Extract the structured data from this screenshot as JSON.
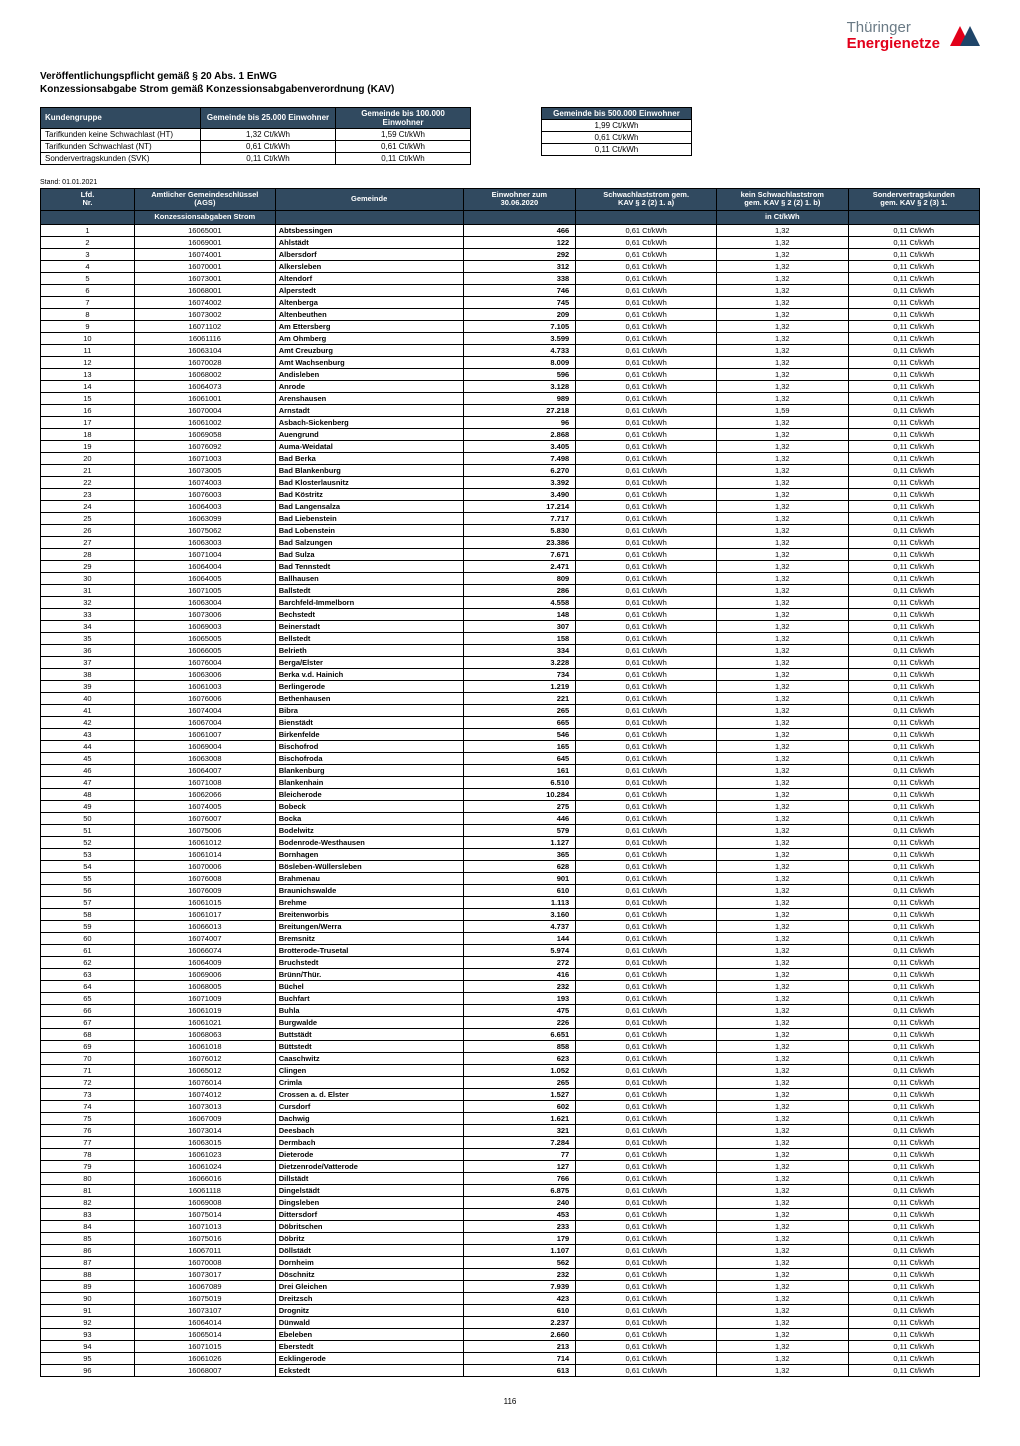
{
  "brand_accent": "#e2001a",
  "brand_text_top": "Thüringer",
  "brand_text_bottom": "Energienetze",
  "heading_line1": "Veröffentlichungspflicht gemäß § 20 Abs. 1  EnWG",
  "heading_line2": "Konzessionsabgabe Strom gemäß Konzessionsabgabenverordnung (KAV)",
  "stand": "Stand: 01.01.2021",
  "page_number": "116",
  "topLeft": {
    "headers": [
      "Kundengruppe",
      "Gemeinde bis 25.000 Einwohner",
      "Gemeinde bis 100.000 Einwohner"
    ],
    "rows": [
      [
        "Tarifkunden keine Schwachlast (HT)",
        "1,32 Ct/kWh",
        "1,59 Ct/kWh"
      ],
      [
        "Tarifkunden Schwachlast (NT)",
        "0,61 Ct/kWh",
        "0,61 Ct/kWh"
      ],
      [
        "Sondervertragskunden (SVK)",
        "0,11 Ct/kWh",
        "0,11 Ct/kWh"
      ]
    ]
  },
  "topRight": {
    "header": "Gemeinde bis 500.000 Einwohner",
    "rows": [
      "1,99 Ct/kWh",
      "0,61 Ct/kWh",
      "0,11 Ct/kWh"
    ]
  },
  "main": {
    "headers": [
      "Lfd.\nNr.",
      "Amtlicher Gemeindeschlüssel\n(AGS)",
      "Gemeinde",
      "Einwohner zum\n30.06.2020",
      "Schwachlaststrom gem.\nKAV § 2 (2) 1. a)",
      "kein Schwachlaststrom\ngem. KAV § 2 (2) 1. b)",
      "Sondervertragskunden\ngem. KAV § 2 (3) 1."
    ],
    "subheaders": [
      "",
      "Konzessionsabgaben Strom",
      "",
      "",
      "",
      "in Ct/kWh",
      ""
    ]
  },
  "rows": [
    {
      "n": "1",
      "ags": "16065001",
      "gem": "Abtsbessingen",
      "ein": "466",
      "sch": "0,61 Ct/kWh",
      "kein": "1,32",
      "svk": "0,11 Ct/kWh"
    },
    {
      "n": "2",
      "ags": "16069001",
      "gem": "Ahlstädt",
      "ein": "122",
      "sch": "0,61 Ct/kWh",
      "kein": "1,32",
      "svk": "0,11 Ct/kWh"
    },
    {
      "n": "3",
      "ags": "16074001",
      "gem": "Albersdorf",
      "ein": "292",
      "sch": "0,61 Ct/kWh",
      "kein": "1,32",
      "svk": "0,11 Ct/kWh"
    },
    {
      "n": "4",
      "ags": "16070001",
      "gem": "Alkersleben",
      "ein": "312",
      "sch": "0,61 Ct/kWh",
      "kein": "1,32",
      "svk": "0,11 Ct/kWh"
    },
    {
      "n": "5",
      "ags": "16073001",
      "gem": "Altendorf",
      "ein": "338",
      "sch": "0,61 Ct/kWh",
      "kein": "1,32",
      "svk": "0,11 Ct/kWh"
    },
    {
      "n": "6",
      "ags": "16068001",
      "gem": "Alperstedt",
      "ein": "746",
      "sch": "0,61 Ct/kWh",
      "kein": "1,32",
      "svk": "0,11 Ct/kWh"
    },
    {
      "n": "7",
      "ags": "16074002",
      "gem": "Altenberga",
      "ein": "745",
      "sch": "0,61 Ct/kWh",
      "kein": "1,32",
      "svk": "0,11 Ct/kWh"
    },
    {
      "n": "8",
      "ags": "16073002",
      "gem": "Altenbeuthen",
      "ein": "209",
      "sch": "0,61 Ct/kWh",
      "kein": "1,32",
      "svk": "0,11 Ct/kWh"
    },
    {
      "n": "9",
      "ags": "16071102",
      "gem": "Am Ettersberg",
      "ein": "7.105",
      "sch": "0,61 Ct/kWh",
      "kein": "1,32",
      "svk": "0,11 Ct/kWh"
    },
    {
      "n": "10",
      "ags": "16061116",
      "gem": "Am Ohmberg",
      "ein": "3.599",
      "sch": "0,61 Ct/kWh",
      "kein": "1,32",
      "svk": "0,11 Ct/kWh"
    },
    {
      "n": "11",
      "ags": "16063104",
      "gem": "Amt Creuzburg",
      "ein": "4.733",
      "sch": "0,61 Ct/kWh",
      "kein": "1,32",
      "svk": "0,11 Ct/kWh"
    },
    {
      "n": "12",
      "ags": "16070028",
      "gem": "Amt Wachsenburg",
      "ein": "8.009",
      "sch": "0,61 Ct/kWh",
      "kein": "1,32",
      "svk": "0,11 Ct/kWh"
    },
    {
      "n": "13",
      "ags": "16068002",
      "gem": "Andisleben",
      "ein": "596",
      "sch": "0,61 Ct/kWh",
      "kein": "1,32",
      "svk": "0,11 Ct/kWh"
    },
    {
      "n": "14",
      "ags": "16064073",
      "gem": "Anrode",
      "ein": "3.128",
      "sch": "0,61 Ct/kWh",
      "kein": "1,32",
      "svk": "0,11 Ct/kWh"
    },
    {
      "n": "15",
      "ags": "16061001",
      "gem": "Arenshausen",
      "ein": "989",
      "sch": "0,61 Ct/kWh",
      "kein": "1,32",
      "svk": "0,11 Ct/kWh"
    },
    {
      "n": "16",
      "ags": "16070004",
      "gem": "Arnstadt",
      "ein": "27.218",
      "sch": "0,61 Ct/kWh",
      "kein": "1,59",
      "svk": "0,11 Ct/kWh"
    },
    {
      "n": "17",
      "ags": "16061002",
      "gem": "Asbach-Sickenberg",
      "ein": "96",
      "sch": "0,61 Ct/kWh",
      "kein": "1,32",
      "svk": "0,11 Ct/kWh"
    },
    {
      "n": "18",
      "ags": "16069058",
      "gem": "Auengrund",
      "ein": "2.868",
      "sch": "0,61 Ct/kWh",
      "kein": "1,32",
      "svk": "0,11 Ct/kWh"
    },
    {
      "n": "19",
      "ags": "16076092",
      "gem": "Auma-Weidatal",
      "ein": "3.405",
      "sch": "0,61 Ct/kWh",
      "kein": "1,32",
      "svk": "0,11 Ct/kWh"
    },
    {
      "n": "20",
      "ags": "16071003",
      "gem": "Bad Berka",
      "ein": "7.498",
      "sch": "0,61 Ct/kWh",
      "kein": "1,32",
      "svk": "0,11 Ct/kWh"
    },
    {
      "n": "21",
      "ags": "16073005",
      "gem": "Bad Blankenburg",
      "ein": "6.270",
      "sch": "0,61 Ct/kWh",
      "kein": "1,32",
      "svk": "0,11 Ct/kWh"
    },
    {
      "n": "22",
      "ags": "16074003",
      "gem": "Bad Klosterlausnitz",
      "ein": "3.392",
      "sch": "0,61 Ct/kWh",
      "kein": "1,32",
      "svk": "0,11 Ct/kWh"
    },
    {
      "n": "23",
      "ags": "16076003",
      "gem": "Bad Köstritz",
      "ein": "3.490",
      "sch": "0,61 Ct/kWh",
      "kein": "1,32",
      "svk": "0,11 Ct/kWh"
    },
    {
      "n": "24",
      "ags": "16064003",
      "gem": "Bad Langensalza",
      "ein": "17.214",
      "sch": "0,61 Ct/kWh",
      "kein": "1,32",
      "svk": "0,11 Ct/kWh"
    },
    {
      "n": "25",
      "ags": "16063099",
      "gem": "Bad Liebenstein",
      "ein": "7.717",
      "sch": "0,61 Ct/kWh",
      "kein": "1,32",
      "svk": "0,11 Ct/kWh"
    },
    {
      "n": "26",
      "ags": "16075062",
      "gem": "Bad Lobenstein",
      "ein": "5.830",
      "sch": "0,61 Ct/kWh",
      "kein": "1,32",
      "svk": "0,11 Ct/kWh"
    },
    {
      "n": "27",
      "ags": "16063003",
      "gem": "Bad Salzungen",
      "ein": "23.386",
      "sch": "0,61 Ct/kWh",
      "kein": "1,32",
      "svk": "0,11 Ct/kWh"
    },
    {
      "n": "28",
      "ags": "16071004",
      "gem": "Bad Sulza",
      "ein": "7.671",
      "sch": "0,61 Ct/kWh",
      "kein": "1,32",
      "svk": "0,11 Ct/kWh"
    },
    {
      "n": "29",
      "ags": "16064004",
      "gem": "Bad Tennstedt",
      "ein": "2.471",
      "sch": "0,61 Ct/kWh",
      "kein": "1,32",
      "svk": "0,11 Ct/kWh"
    },
    {
      "n": "30",
      "ags": "16064005",
      "gem": "Ballhausen",
      "ein": "809",
      "sch": "0,61 Ct/kWh",
      "kein": "1,32",
      "svk": "0,11 Ct/kWh"
    },
    {
      "n": "31",
      "ags": "16071005",
      "gem": "Ballstedt",
      "ein": "286",
      "sch": "0,61 Ct/kWh",
      "kein": "1,32",
      "svk": "0,11 Ct/kWh"
    },
    {
      "n": "32",
      "ags": "16063004",
      "gem": "Barchfeld-Immelborn",
      "ein": "4.558",
      "sch": "0,61 Ct/kWh",
      "kein": "1,32",
      "svk": "0,11 Ct/kWh"
    },
    {
      "n": "33",
      "ags": "16073006",
      "gem": "Bechstedt",
      "ein": "148",
      "sch": "0,61 Ct/kWh",
      "kein": "1,32",
      "svk": "0,11 Ct/kWh"
    },
    {
      "n": "34",
      "ags": "16069003",
      "gem": "Beinerstadt",
      "ein": "307",
      "sch": "0,61 Ct/kWh",
      "kein": "1,32",
      "svk": "0,11 Ct/kWh"
    },
    {
      "n": "35",
      "ags": "16065005",
      "gem": "Bellstedt",
      "ein": "158",
      "sch": "0,61 Ct/kWh",
      "kein": "1,32",
      "svk": "0,11 Ct/kWh"
    },
    {
      "n": "36",
      "ags": "16066005",
      "gem": "Belrieth",
      "ein": "334",
      "sch": "0,61 Ct/kWh",
      "kein": "1,32",
      "svk": "0,11 Ct/kWh"
    },
    {
      "n": "37",
      "ags": "16076004",
      "gem": "Berga/Elster",
      "ein": "3.228",
      "sch": "0,61 Ct/kWh",
      "kein": "1,32",
      "svk": "0,11 Ct/kWh"
    },
    {
      "n": "38",
      "ags": "16063006",
      "gem": "Berka v.d. Hainich",
      "ein": "734",
      "sch": "0,61 Ct/kWh",
      "kein": "1,32",
      "svk": "0,11 Ct/kWh"
    },
    {
      "n": "39",
      "ags": "16061003",
      "gem": "Berlingerode",
      "ein": "1.219",
      "sch": "0,61 Ct/kWh",
      "kein": "1,32",
      "svk": "0,11 Ct/kWh"
    },
    {
      "n": "40",
      "ags": "16076006",
      "gem": "Bethenhausen",
      "ein": "221",
      "sch": "0,61 Ct/kWh",
      "kein": "1,32",
      "svk": "0,11 Ct/kWh"
    },
    {
      "n": "41",
      "ags": "16074004",
      "gem": "Bibra",
      "ein": "265",
      "sch": "0,61 Ct/kWh",
      "kein": "1,32",
      "svk": "0,11 Ct/kWh"
    },
    {
      "n": "42",
      "ags": "16067004",
      "gem": "Bienstädt",
      "ein": "665",
      "sch": "0,61 Ct/kWh",
      "kein": "1,32",
      "svk": "0,11 Ct/kWh"
    },
    {
      "n": "43",
      "ags": "16061007",
      "gem": "Birkenfelde",
      "ein": "546",
      "sch": "0,61 Ct/kWh",
      "kein": "1,32",
      "svk": "0,11 Ct/kWh"
    },
    {
      "n": "44",
      "ags": "16069004",
      "gem": "Bischofrod",
      "ein": "165",
      "sch": "0,61 Ct/kWh",
      "kein": "1,32",
      "svk": "0,11 Ct/kWh"
    },
    {
      "n": "45",
      "ags": "16063008",
      "gem": "Bischofroda",
      "ein": "645",
      "sch": "0,61 Ct/kWh",
      "kein": "1,32",
      "svk": "0,11 Ct/kWh"
    },
    {
      "n": "46",
      "ags": "16064007",
      "gem": "Blankenburg",
      "ein": "161",
      "sch": "0,61 Ct/kWh",
      "kein": "1,32",
      "svk": "0,11 Ct/kWh"
    },
    {
      "n": "47",
      "ags": "16071008",
      "gem": "Blankenhain",
      "ein": "6.510",
      "sch": "0,61 Ct/kWh",
      "kein": "1,32",
      "svk": "0,11 Ct/kWh"
    },
    {
      "n": "48",
      "ags": "16062066",
      "gem": "Bleicherode",
      "ein": "10.284",
      "sch": "0,61 Ct/kWh",
      "kein": "1,32",
      "svk": "0,11 Ct/kWh"
    },
    {
      "n": "49",
      "ags": "16074005",
      "gem": "Bobeck",
      "ein": "275",
      "sch": "0,61 Ct/kWh",
      "kein": "1,32",
      "svk": "0,11 Ct/kWh"
    },
    {
      "n": "50",
      "ags": "16076007",
      "gem": "Bocka",
      "ein": "446",
      "sch": "0,61 Ct/kWh",
      "kein": "1,32",
      "svk": "0,11 Ct/kWh"
    },
    {
      "n": "51",
      "ags": "16075006",
      "gem": "Bodelwitz",
      "ein": "579",
      "sch": "0,61 Ct/kWh",
      "kein": "1,32",
      "svk": "0,11 Ct/kWh"
    },
    {
      "n": "52",
      "ags": "16061012",
      "gem": "Bodenrode-Westhausen",
      "ein": "1.127",
      "sch": "0,61 Ct/kWh",
      "kein": "1,32",
      "svk": "0,11 Ct/kWh"
    },
    {
      "n": "53",
      "ags": "16061014",
      "gem": "Bornhagen",
      "ein": "365",
      "sch": "0,61 Ct/kWh",
      "kein": "1,32",
      "svk": "0,11 Ct/kWh"
    },
    {
      "n": "54",
      "ags": "16070006",
      "gem": "Bösleben-Wüllersleben",
      "ein": "628",
      "sch": "0,61 Ct/kWh",
      "kein": "1,32",
      "svk": "0,11 Ct/kWh"
    },
    {
      "n": "55",
      "ags": "16076008",
      "gem": "Brahmenau",
      "ein": "901",
      "sch": "0,61 Ct/kWh",
      "kein": "1,32",
      "svk": "0,11 Ct/kWh"
    },
    {
      "n": "56",
      "ags": "16076009",
      "gem": "Braunichswalde",
      "ein": "610",
      "sch": "0,61 Ct/kWh",
      "kein": "1,32",
      "svk": "0,11 Ct/kWh"
    },
    {
      "n": "57",
      "ags": "16061015",
      "gem": "Brehme",
      "ein": "1.113",
      "sch": "0,61 Ct/kWh",
      "kein": "1,32",
      "svk": "0,11 Ct/kWh"
    },
    {
      "n": "58",
      "ags": "16061017",
      "gem": "Breitenworbis",
      "ein": "3.160",
      "sch": "0,61 Ct/kWh",
      "kein": "1,32",
      "svk": "0,11 Ct/kWh"
    },
    {
      "n": "59",
      "ags": "16066013",
      "gem": "Breitungen/Werra",
      "ein": "4.737",
      "sch": "0,61 Ct/kWh",
      "kein": "1,32",
      "svk": "0,11 Ct/kWh"
    },
    {
      "n": "60",
      "ags": "16074007",
      "gem": "Bremsnitz",
      "ein": "144",
      "sch": "0,61 Ct/kWh",
      "kein": "1,32",
      "svk": "0,11 Ct/kWh"
    },
    {
      "n": "61",
      "ags": "16066074",
      "gem": "Brotterode-Trusetal",
      "ein": "5.974",
      "sch": "0,61 Ct/kWh",
      "kein": "1,32",
      "svk": "0,11 Ct/kWh"
    },
    {
      "n": "62",
      "ags": "16064009",
      "gem": "Bruchstedt",
      "ein": "272",
      "sch": "0,61 Ct/kWh",
      "kein": "1,32",
      "svk": "0,11 Ct/kWh"
    },
    {
      "n": "63",
      "ags": "16069006",
      "gem": "Brünn/Thür.",
      "ein": "416",
      "sch": "0,61 Ct/kWh",
      "kein": "1,32",
      "svk": "0,11 Ct/kWh"
    },
    {
      "n": "64",
      "ags": "16068005",
      "gem": "Büchel",
      "ein": "232",
      "sch": "0,61 Ct/kWh",
      "kein": "1,32",
      "svk": "0,11 Ct/kWh"
    },
    {
      "n": "65",
      "ags": "16071009",
      "gem": "Buchfart",
      "ein": "193",
      "sch": "0,61 Ct/kWh",
      "kein": "1,32",
      "svk": "0,11 Ct/kWh"
    },
    {
      "n": "66",
      "ags": "16061019",
      "gem": "Buhla",
      "ein": "475",
      "sch": "0,61 Ct/kWh",
      "kein": "1,32",
      "svk": "0,11 Ct/kWh"
    },
    {
      "n": "67",
      "ags": "16061021",
      "gem": "Burgwalde",
      "ein": "226",
      "sch": "0,61 Ct/kWh",
      "kein": "1,32",
      "svk": "0,11 Ct/kWh"
    },
    {
      "n": "68",
      "ags": "16068063",
      "gem": "Buttstädt",
      "ein": "6.651",
      "sch": "0,61 Ct/kWh",
      "kein": "1,32",
      "svk": "0,11 Ct/kWh"
    },
    {
      "n": "69",
      "ags": "16061018",
      "gem": "Büttstedt",
      "ein": "858",
      "sch": "0,61 Ct/kWh",
      "kein": "1,32",
      "svk": "0,11 Ct/kWh"
    },
    {
      "n": "70",
      "ags": "16076012",
      "gem": "Caaschwitz",
      "ein": "623",
      "sch": "0,61 Ct/kWh",
      "kein": "1,32",
      "svk": "0,11 Ct/kWh"
    },
    {
      "n": "71",
      "ags": "16065012",
      "gem": "Clingen",
      "ein": "1.052",
      "sch": "0,61 Ct/kWh",
      "kein": "1,32",
      "svk": "0,11 Ct/kWh"
    },
    {
      "n": "72",
      "ags": "16076014",
      "gem": "Crimla",
      "ein": "265",
      "sch": "0,61 Ct/kWh",
      "kein": "1,32",
      "svk": "0,11 Ct/kWh"
    },
    {
      "n": "73",
      "ags": "16074012",
      "gem": "Crossen a. d. Elster",
      "ein": "1.527",
      "sch": "0,61 Ct/kWh",
      "kein": "1,32",
      "svk": "0,11 Ct/kWh"
    },
    {
      "n": "74",
      "ags": "16073013",
      "gem": "Cursdorf",
      "ein": "602",
      "sch": "0,61 Ct/kWh",
      "kein": "1,32",
      "svk": "0,11 Ct/kWh"
    },
    {
      "n": "75",
      "ags": "16067009",
      "gem": "Dachwig",
      "ein": "1.621",
      "sch": "0,61 Ct/kWh",
      "kein": "1,32",
      "svk": "0,11 Ct/kWh"
    },
    {
      "n": "76",
      "ags": "16073014",
      "gem": "Deesbach",
      "ein": "321",
      "sch": "0,61 Ct/kWh",
      "kein": "1,32",
      "svk": "0,11 Ct/kWh"
    },
    {
      "n": "77",
      "ags": "16063015",
      "gem": "Dermbach",
      "ein": "7.284",
      "sch": "0,61 Ct/kWh",
      "kein": "1,32",
      "svk": "0,11 Ct/kWh"
    },
    {
      "n": "78",
      "ags": "16061023",
      "gem": "Dieterode",
      "ein": "77",
      "sch": "0,61 Ct/kWh",
      "kein": "1,32",
      "svk": "0,11 Ct/kWh"
    },
    {
      "n": "79",
      "ags": "16061024",
      "gem": "Dietzenrode/Vatterode",
      "ein": "127",
      "sch": "0,61 Ct/kWh",
      "kein": "1,32",
      "svk": "0,11 Ct/kWh"
    },
    {
      "n": "80",
      "ags": "16066016",
      "gem": "Dillstädt",
      "ein": "766",
      "sch": "0,61 Ct/kWh",
      "kein": "1,32",
      "svk": "0,11 Ct/kWh"
    },
    {
      "n": "81",
      "ags": "16061118",
      "gem": "Dingelstädt",
      "ein": "6.875",
      "sch": "0,61 Ct/kWh",
      "kein": "1,32",
      "svk": "0,11 Ct/kWh"
    },
    {
      "n": "82",
      "ags": "16069008",
      "gem": "Dingsleben",
      "ein": "240",
      "sch": "0,61 Ct/kWh",
      "kein": "1,32",
      "svk": "0,11 Ct/kWh"
    },
    {
      "n": "83",
      "ags": "16075014",
      "gem": "Dittersdorf",
      "ein": "453",
      "sch": "0,61 Ct/kWh",
      "kein": "1,32",
      "svk": "0,11 Ct/kWh"
    },
    {
      "n": "84",
      "ags": "16071013",
      "gem": "Döbritschen",
      "ein": "233",
      "sch": "0,61 Ct/kWh",
      "kein": "1,32",
      "svk": "0,11 Ct/kWh"
    },
    {
      "n": "85",
      "ags": "16075016",
      "gem": "Döbritz",
      "ein": "179",
      "sch": "0,61 Ct/kWh",
      "kein": "1,32",
      "svk": "0,11 Ct/kWh"
    },
    {
      "n": "86",
      "ags": "16067011",
      "gem": "Döllstädt",
      "ein": "1.107",
      "sch": "0,61 Ct/kWh",
      "kein": "1,32",
      "svk": "0,11 Ct/kWh"
    },
    {
      "n": "87",
      "ags": "16070008",
      "gem": "Dornheim",
      "ein": "562",
      "sch": "0,61 Ct/kWh",
      "kein": "1,32",
      "svk": "0,11 Ct/kWh"
    },
    {
      "n": "88",
      "ags": "16073017",
      "gem": "Döschnitz",
      "ein": "232",
      "sch": "0,61 Ct/kWh",
      "kein": "1,32",
      "svk": "0,11 Ct/kWh"
    },
    {
      "n": "89",
      "ags": "16067089",
      "gem": "Drei Gleichen",
      "ein": "7.939",
      "sch": "0,61 Ct/kWh",
      "kein": "1,32",
      "svk": "0,11 Ct/kWh"
    },
    {
      "n": "90",
      "ags": "16075019",
      "gem": "Dreitzsch",
      "ein": "423",
      "sch": "0,61 Ct/kWh",
      "kein": "1,32",
      "svk": "0,11 Ct/kWh"
    },
    {
      "n": "91",
      "ags": "16073107",
      "gem": "Drognitz",
      "ein": "610",
      "sch": "0,61 Ct/kWh",
      "kein": "1,32",
      "svk": "0,11 Ct/kWh"
    },
    {
      "n": "92",
      "ags": "16064014",
      "gem": "Dünwald",
      "ein": "2.237",
      "sch": "0,61 Ct/kWh",
      "kein": "1,32",
      "svk": "0,11 Ct/kWh"
    },
    {
      "n": "93",
      "ags": "16065014",
      "gem": "Ebeleben",
      "ein": "2.660",
      "sch": "0,61 Ct/kWh",
      "kein": "1,32",
      "svk": "0,11 Ct/kWh"
    },
    {
      "n": "94",
      "ags": "16071015",
      "gem": "Eberstedt",
      "ein": "213",
      "sch": "0,61 Ct/kWh",
      "kein": "1,32",
      "svk": "0,11 Ct/kWh"
    },
    {
      "n": "95",
      "ags": "16061026",
      "gem": "Ecklingerode",
      "ein": "714",
      "sch": "0,61 Ct/kWh",
      "kein": "1,32",
      "svk": "0,11 Ct/kWh"
    },
    {
      "n": "96",
      "ags": "16068007",
      "gem": "Eckstedt",
      "ein": "613",
      "sch": "0,61 Ct/kWh",
      "kein": "1,32",
      "svk": "0,11 Ct/kWh"
    }
  ]
}
